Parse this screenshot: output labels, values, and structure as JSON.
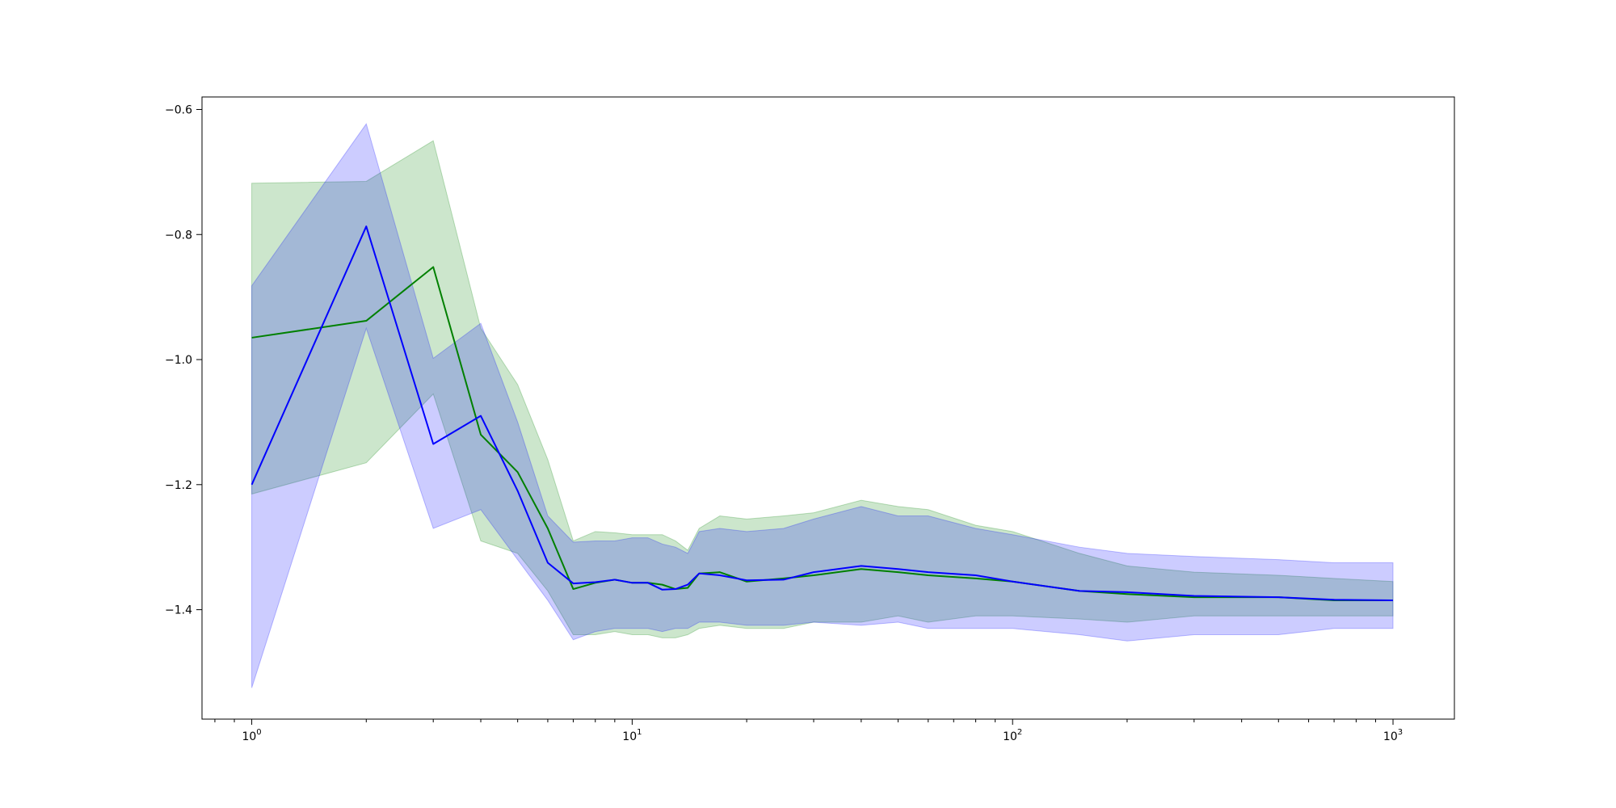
{
  "chart_data": {
    "type": "line",
    "title": "",
    "xlabel": "",
    "ylabel": "",
    "x_scale": "log",
    "xlim": [
      0.74,
      1450
    ],
    "ylim": [
      -1.575,
      -0.58
    ],
    "x_ticks": [
      {
        "value": 1,
        "base": "10",
        "exp": "0"
      },
      {
        "value": 10,
        "base": "10",
        "exp": "1"
      },
      {
        "value": 100,
        "base": "10",
        "exp": "2"
      },
      {
        "value": 1000,
        "base": "10",
        "exp": "3"
      }
    ],
    "y_ticks": [
      {
        "value": -0.6,
        "label": "−0.6"
      },
      {
        "value": -0.8,
        "label": "−0.8"
      },
      {
        "value": -1.0,
        "label": "−1.0"
      },
      {
        "value": -1.2,
        "label": "−1.2"
      },
      {
        "value": -1.4,
        "label": "−1.4"
      }
    ],
    "grid": false,
    "legend": "none",
    "series": [
      {
        "color": "#008000",
        "band_color": "#008000",
        "band_opacity": 0.2,
        "x": [
          1,
          2,
          3,
          4,
          5,
          6,
          7,
          8,
          9,
          10,
          11,
          12,
          13,
          14,
          15,
          17,
          20,
          25,
          30,
          40,
          50,
          60,
          80,
          100,
          150,
          200,
          300,
          500,
          700,
          1000
        ],
        "y": [
          -0.965,
          -0.938,
          -0.852,
          -1.12,
          -1.18,
          -1.27,
          -1.367,
          -1.357,
          -1.352,
          -1.357,
          -1.357,
          -1.36,
          -1.367,
          -1.365,
          -1.342,
          -1.34,
          -1.355,
          -1.35,
          -1.345,
          -1.335,
          -1.34,
          -1.345,
          -1.35,
          -1.355,
          -1.37,
          -1.375,
          -1.38,
          -1.38,
          -1.385,
          -1.385
        ],
        "lower": [
          -1.215,
          -1.165,
          -1.055,
          -1.29,
          -1.31,
          -1.37,
          -1.44,
          -1.44,
          -1.435,
          -1.44,
          -1.44,
          -1.445,
          -1.445,
          -1.44,
          -1.43,
          -1.425,
          -1.43,
          -1.43,
          -1.42,
          -1.42,
          -1.41,
          -1.42,
          -1.41,
          -1.41,
          -1.415,
          -1.42,
          -1.41,
          -1.41,
          -1.41,
          -1.41
        ],
        "upper": [
          -0.718,
          -0.715,
          -0.65,
          -0.95,
          -1.04,
          -1.16,
          -1.29,
          -1.275,
          -1.277,
          -1.28,
          -1.28,
          -1.28,
          -1.29,
          -1.305,
          -1.27,
          -1.25,
          -1.255,
          -1.25,
          -1.245,
          -1.225,
          -1.235,
          -1.24,
          -1.265,
          -1.275,
          -1.31,
          -1.33,
          -1.34,
          -1.345,
          -1.35,
          -1.355
        ]
      },
      {
        "color": "#0000ff",
        "band_color": "#0000ff",
        "band_opacity": 0.2,
        "x": [
          1,
          2,
          3,
          4,
          5,
          6,
          7,
          8,
          9,
          10,
          11,
          12,
          13,
          14,
          15,
          17,
          20,
          25,
          30,
          40,
          50,
          60,
          80,
          100,
          150,
          200,
          300,
          500,
          700,
          1000
        ],
        "y": [
          -1.2,
          -0.787,
          -1.135,
          -1.09,
          -1.21,
          -1.325,
          -1.358,
          -1.356,
          -1.352,
          -1.357,
          -1.357,
          -1.368,
          -1.367,
          -1.36,
          -1.342,
          -1.345,
          -1.353,
          -1.352,
          -1.34,
          -1.33,
          -1.335,
          -1.34,
          -1.345,
          -1.355,
          -1.37,
          -1.372,
          -1.378,
          -1.38,
          -1.384,
          -1.385
        ],
        "lower": [
          -1.525,
          -0.95,
          -1.27,
          -1.24,
          -1.32,
          -1.385,
          -1.448,
          -1.435,
          -1.43,
          -1.43,
          -1.43,
          -1.435,
          -1.43,
          -1.43,
          -1.42,
          -1.42,
          -1.425,
          -1.425,
          -1.42,
          -1.425,
          -1.42,
          -1.43,
          -1.43,
          -1.43,
          -1.44,
          -1.45,
          -1.44,
          -1.44,
          -1.43,
          -1.43
        ],
        "upper": [
          -0.882,
          -0.623,
          -0.998,
          -0.942,
          -1.1,
          -1.25,
          -1.292,
          -1.29,
          -1.29,
          -1.285,
          -1.285,
          -1.295,
          -1.3,
          -1.31,
          -1.275,
          -1.27,
          -1.275,
          -1.27,
          -1.255,
          -1.235,
          -1.25,
          -1.25,
          -1.27,
          -1.28,
          -1.3,
          -1.31,
          -1.315,
          -1.32,
          -1.325,
          -1.325
        ]
      }
    ]
  }
}
